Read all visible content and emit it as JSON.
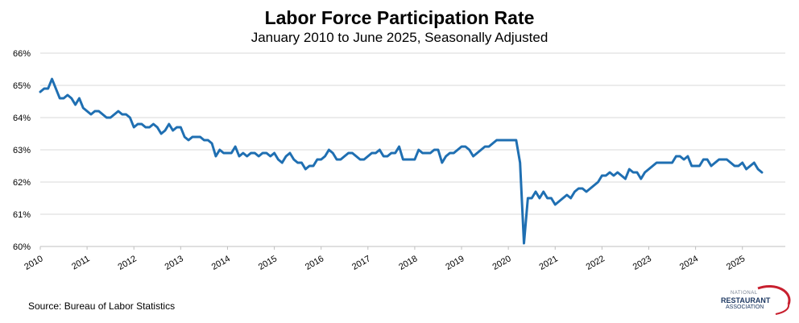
{
  "chart_data": {
    "type": "line",
    "title": "Labor Force Participation Rate",
    "subtitle": "January  2010 to June 2025, Seasonally Adjusted",
    "xlabel": "",
    "ylabel": "",
    "ylim": [
      60,
      66
    ],
    "y_ticks": [
      "60%",
      "61%",
      "62%",
      "63%",
      "64%",
      "65%",
      "66%"
    ],
    "x_ticks": [
      "2010",
      "2011",
      "2012",
      "2013",
      "2014",
      "2015",
      "2016",
      "2017",
      "2018",
      "2019",
      "2020",
      "2021",
      "2022",
      "2023",
      "2024",
      "2025"
    ],
    "x_start": "2010-01",
    "x_end": "2025-06",
    "grid": "horizontal",
    "legend": "none",
    "line_color": "#1f6fb2",
    "series": [
      {
        "values": [
          64.8,
          64.9,
          64.9,
          65.2,
          64.9,
          64.6,
          64.6,
          64.7,
          64.6,
          64.4,
          64.6,
          64.3,
          64.2,
          64.1,
          64.2,
          64.2,
          64.1,
          64.0,
          64.0,
          64.1,
          64.2,
          64.1,
          64.1,
          64.0,
          63.7,
          63.8,
          63.8,
          63.7,
          63.7,
          63.8,
          63.7,
          63.5,
          63.6,
          63.8,
          63.6,
          63.7,
          63.7,
          63.4,
          63.3,
          63.4,
          63.4,
          63.4,
          63.3,
          63.3,
          63.2,
          62.8,
          63.0,
          62.9,
          62.9,
          62.9,
          63.1,
          62.8,
          62.9,
          62.8,
          62.9,
          62.9,
          62.8,
          62.9,
          62.9,
          62.8,
          62.9,
          62.7,
          62.6,
          62.8,
          62.9,
          62.7,
          62.6,
          62.6,
          62.4,
          62.5,
          62.5,
          62.7,
          62.7,
          62.8,
          63.0,
          62.9,
          62.7,
          62.7,
          62.8,
          62.9,
          62.9,
          62.8,
          62.7,
          62.7,
          62.8,
          62.9,
          62.9,
          63.0,
          62.8,
          62.8,
          62.9,
          62.9,
          63.1,
          62.7,
          62.7,
          62.7,
          62.7,
          63.0,
          62.9,
          62.9,
          62.9,
          63.0,
          63.0,
          62.6,
          62.8,
          62.9,
          62.9,
          63.0,
          63.1,
          63.1,
          63.0,
          62.8,
          62.9,
          63.0,
          63.1,
          63.1,
          63.2,
          63.3,
          63.3,
          63.3,
          63.3,
          63.3,
          63.3,
          62.6,
          60.1,
          61.5,
          61.5,
          61.7,
          61.5,
          61.7,
          61.5,
          61.5,
          61.3,
          61.4,
          61.5,
          61.6,
          61.5,
          61.7,
          61.8,
          61.8,
          61.7,
          61.8,
          61.9,
          62.0,
          62.2,
          62.2,
          62.3,
          62.2,
          62.3,
          62.2,
          62.1,
          62.4,
          62.3,
          62.3,
          62.1,
          62.3,
          62.4,
          62.5,
          62.6,
          62.6,
          62.6,
          62.6,
          62.6,
          62.8,
          62.8,
          62.7,
          62.8,
          62.5,
          62.5,
          62.5,
          62.7,
          62.7,
          62.5,
          62.6,
          62.7,
          62.7,
          62.7,
          62.6,
          62.5,
          62.5,
          62.6,
          62.4,
          62.5,
          62.6,
          62.4,
          62.3
        ]
      }
    ]
  },
  "footer": {
    "source": "Source: Bureau of Labor Statistics",
    "logo_line1": "NATIONAL",
    "logo_line2": "RESTAURANT",
    "logo_line3": "ASSOCIATION"
  }
}
